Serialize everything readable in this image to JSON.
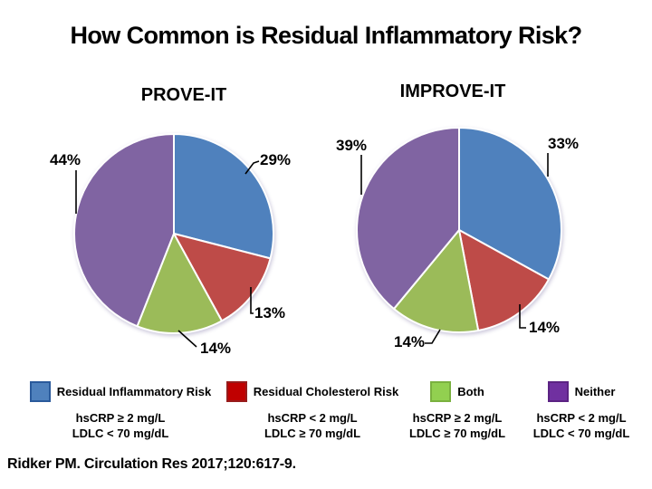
{
  "slide": {
    "title": "How Common is Residual Inflammatory Risk?",
    "citation": "Ridker PM. Circulation Res 2017;120:617-9."
  },
  "chart_data": [
    {
      "type": "pie",
      "title": "PROVE-IT",
      "labels": [
        "Residual Inflammatory Risk",
        "Residual Cholesterol Risk",
        "Both",
        "Neither"
      ],
      "values": [
        29,
        13,
        14,
        44
      ],
      "data_labels": [
        "29%",
        "13%",
        "14%",
        "44%"
      ],
      "colors": [
        "#4f81bd",
        "#be4b48",
        "#9bbb59",
        "#8064a2"
      ],
      "start_angle_deg": 0,
      "direction": "clockwise",
      "slice_border_color": "#ffffff"
    },
    {
      "type": "pie",
      "title": "IMPROVE-IT",
      "labels": [
        "Residual Inflammatory Risk",
        "Residual Cholesterol Risk",
        "Both",
        "Neither"
      ],
      "values": [
        33,
        14,
        14,
        39
      ],
      "data_labels": [
        "33%",
        "14%",
        "14%",
        "39%"
      ],
      "colors": [
        "#4f81bd",
        "#be4b48",
        "#9bbb59",
        "#8064a2"
      ],
      "start_angle_deg": 0,
      "direction": "clockwise",
      "slice_border_color": "#ffffff"
    }
  ],
  "legend": {
    "items": [
      {
        "label": "Residual Inflammatory Risk",
        "swatch_color": "#4f81bd",
        "swatch_border": "#2a5a9b",
        "criteria_line1": "hsCRP ≥ 2 mg/L",
        "criteria_line2": "LDLC < 70 mg/dL"
      },
      {
        "label": "Residual Cholesterol Risk",
        "swatch_color": "#c00000",
        "swatch_border": "#971c1c",
        "criteria_line1": "hsCRP < 2 mg/L",
        "criteria_line2": "LDLC ≥ 70 mg/dL"
      },
      {
        "label": "Both",
        "swatch_color": "#92d050",
        "swatch_border": "#7ab13f",
        "criteria_line1": "hsCRP ≥ 2 mg/L",
        "criteria_line2": "LDLC ≥ 70 mg/dL"
      },
      {
        "label": "Neither",
        "swatch_color": "#7030a0",
        "swatch_border": "#5b2383",
        "criteria_line1": "hsCRP < 2 mg/L",
        "criteria_line2": "LDLC < 70 mg/dL"
      }
    ]
  }
}
